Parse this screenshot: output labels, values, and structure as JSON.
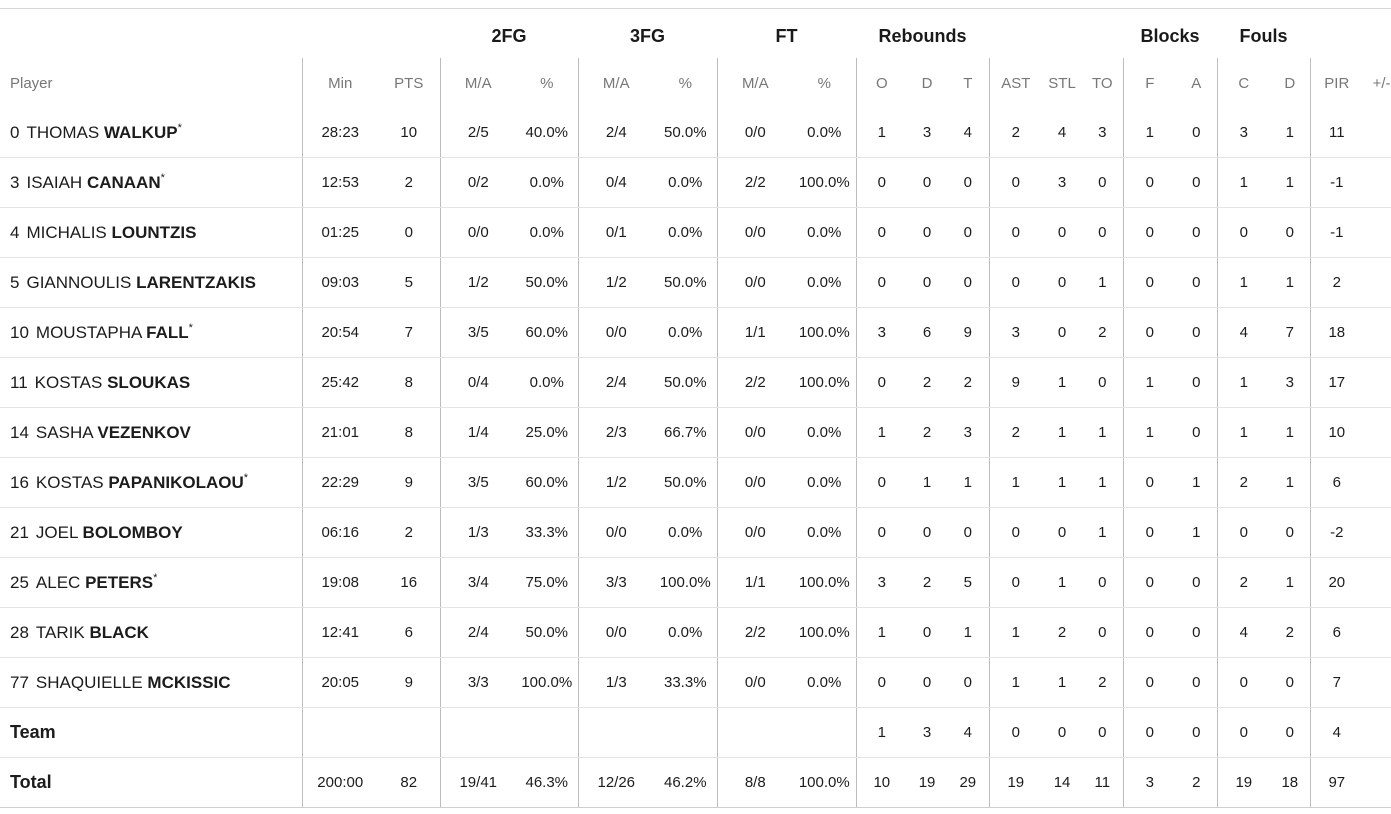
{
  "groups": {
    "fg2": "2FG",
    "fg3": "3FG",
    "ft": "FT",
    "rebounds": "Rebounds",
    "blocks": "Blocks",
    "fouls": "Fouls"
  },
  "columns": {
    "player": "Player",
    "min": "Min",
    "pts": "PTS",
    "fg2_ma": "M/A",
    "fg2_pct": "%",
    "fg3_ma": "M/A",
    "fg3_pct": "%",
    "ft_ma": "M/A",
    "ft_pct": "%",
    "reb_o": "O",
    "reb_d": "D",
    "reb_t": "T",
    "ast": "AST",
    "stl": "STL",
    "to": "TO",
    "blk_f": "F",
    "blk_a": "A",
    "foul_c": "C",
    "foul_d": "D",
    "pir": "PIR",
    "pm": "+/-"
  },
  "players": [
    {
      "num": "0",
      "first": "THOMAS",
      "last": "WALKUP",
      "star": "*",
      "min": "28:23",
      "pts": "10",
      "fg2": "2/5",
      "fg2p": "40.0%",
      "fg3": "2/4",
      "fg3p": "50.0%",
      "ft": "0/0",
      "ftp": "0.0%",
      "o": "1",
      "d": "3",
      "t": "4",
      "ast": "2",
      "stl": "4",
      "to": "3",
      "bf": "1",
      "ba": "0",
      "fc": "3",
      "fd": "1",
      "pir": "11",
      "pm": ""
    },
    {
      "num": "3",
      "first": "ISAIAH",
      "last": "CANAAN",
      "star": "*",
      "min": "12:53",
      "pts": "2",
      "fg2": "0/2",
      "fg2p": "0.0%",
      "fg3": "0/4",
      "fg3p": "0.0%",
      "ft": "2/2",
      "ftp": "100.0%",
      "o": "0",
      "d": "0",
      "t": "0",
      "ast": "0",
      "stl": "3",
      "to": "0",
      "bf": "0",
      "ba": "0",
      "fc": "1",
      "fd": "1",
      "pir": "-1",
      "pm": ""
    },
    {
      "num": "4",
      "first": "MICHALIS",
      "last": "LOUNTZIS",
      "star": "",
      "min": "01:25",
      "pts": "0",
      "fg2": "0/0",
      "fg2p": "0.0%",
      "fg3": "0/1",
      "fg3p": "0.0%",
      "ft": "0/0",
      "ftp": "0.0%",
      "o": "0",
      "d": "0",
      "t": "0",
      "ast": "0",
      "stl": "0",
      "to": "0",
      "bf": "0",
      "ba": "0",
      "fc": "0",
      "fd": "0",
      "pir": "-1",
      "pm": ""
    },
    {
      "num": "5",
      "first": "GIANNOULIS",
      "last": "LARENTZAKIS",
      "star": "",
      "min": "09:03",
      "pts": "5",
      "fg2": "1/2",
      "fg2p": "50.0%",
      "fg3": "1/2",
      "fg3p": "50.0%",
      "ft": "0/0",
      "ftp": "0.0%",
      "o": "0",
      "d": "0",
      "t": "0",
      "ast": "0",
      "stl": "0",
      "to": "1",
      "bf": "0",
      "ba": "0",
      "fc": "1",
      "fd": "1",
      "pir": "2",
      "pm": ""
    },
    {
      "num": "10",
      "first": "MOUSTAPHA",
      "last": "FALL",
      "star": "*",
      "min": "20:54",
      "pts": "7",
      "fg2": "3/5",
      "fg2p": "60.0%",
      "fg3": "0/0",
      "fg3p": "0.0%",
      "ft": "1/1",
      "ftp": "100.0%",
      "o": "3",
      "d": "6",
      "t": "9",
      "ast": "3",
      "stl": "0",
      "to": "2",
      "bf": "0",
      "ba": "0",
      "fc": "4",
      "fd": "7",
      "pir": "18",
      "pm": ""
    },
    {
      "num": "11",
      "first": "KOSTAS",
      "last": "SLOUKAS",
      "star": "",
      "min": "25:42",
      "pts": "8",
      "fg2": "0/4",
      "fg2p": "0.0%",
      "fg3": "2/4",
      "fg3p": "50.0%",
      "ft": "2/2",
      "ftp": "100.0%",
      "o": "0",
      "d": "2",
      "t": "2",
      "ast": "9",
      "stl": "1",
      "to": "0",
      "bf": "1",
      "ba": "0",
      "fc": "1",
      "fd": "3",
      "pir": "17",
      "pm": ""
    },
    {
      "num": "14",
      "first": "SASHA",
      "last": "VEZENKOV",
      "star": "",
      "min": "21:01",
      "pts": "8",
      "fg2": "1/4",
      "fg2p": "25.0%",
      "fg3": "2/3",
      "fg3p": "66.7%",
      "ft": "0/0",
      "ftp": "0.0%",
      "o": "1",
      "d": "2",
      "t": "3",
      "ast": "2",
      "stl": "1",
      "to": "1",
      "bf": "1",
      "ba": "0",
      "fc": "1",
      "fd": "1",
      "pir": "10",
      "pm": ""
    },
    {
      "num": "16",
      "first": "KOSTAS",
      "last": "PAPANIKOLAOU",
      "star": "*",
      "min": "22:29",
      "pts": "9",
      "fg2": "3/5",
      "fg2p": "60.0%",
      "fg3": "1/2",
      "fg3p": "50.0%",
      "ft": "0/0",
      "ftp": "0.0%",
      "o": "0",
      "d": "1",
      "t": "1",
      "ast": "1",
      "stl": "1",
      "to": "1",
      "bf": "0",
      "ba": "1",
      "fc": "2",
      "fd": "1",
      "pir": "6",
      "pm": ""
    },
    {
      "num": "21",
      "first": "JOEL",
      "last": "BOLOMBOY",
      "star": "",
      "min": "06:16",
      "pts": "2",
      "fg2": "1/3",
      "fg2p": "33.3%",
      "fg3": "0/0",
      "fg3p": "0.0%",
      "ft": "0/0",
      "ftp": "0.0%",
      "o": "0",
      "d": "0",
      "t": "0",
      "ast": "0",
      "stl": "0",
      "to": "1",
      "bf": "0",
      "ba": "1",
      "fc": "0",
      "fd": "0",
      "pir": "-2",
      "pm": ""
    },
    {
      "num": "25",
      "first": "ALEC",
      "last": "PETERS",
      "star": "*",
      "min": "19:08",
      "pts": "16",
      "fg2": "3/4",
      "fg2p": "75.0%",
      "fg3": "3/3",
      "fg3p": "100.0%",
      "ft": "1/1",
      "ftp": "100.0%",
      "o": "3",
      "d": "2",
      "t": "5",
      "ast": "0",
      "stl": "1",
      "to": "0",
      "bf": "0",
      "ba": "0",
      "fc": "2",
      "fd": "1",
      "pir": "20",
      "pm": ""
    },
    {
      "num": "28",
      "first": "TARIK",
      "last": "BLACK",
      "star": "",
      "min": "12:41",
      "pts": "6",
      "fg2": "2/4",
      "fg2p": "50.0%",
      "fg3": "0/0",
      "fg3p": "0.0%",
      "ft": "2/2",
      "ftp": "100.0%",
      "o": "1",
      "d": "0",
      "t": "1",
      "ast": "1",
      "stl": "2",
      "to": "0",
      "bf": "0",
      "ba": "0",
      "fc": "4",
      "fd": "2",
      "pir": "6",
      "pm": ""
    },
    {
      "num": "77",
      "first": "SHAQUIELLE",
      "last": "MCKISSIC",
      "star": "",
      "min": "20:05",
      "pts": "9",
      "fg2": "3/3",
      "fg2p": "100.0%",
      "fg3": "1/3",
      "fg3p": "33.3%",
      "ft": "0/0",
      "ftp": "0.0%",
      "o": "0",
      "d": "0",
      "t": "0",
      "ast": "1",
      "stl": "1",
      "to": "2",
      "bf": "0",
      "ba": "0",
      "fc": "0",
      "fd": "0",
      "pir": "7",
      "pm": ""
    }
  ],
  "team": {
    "label": "Team",
    "min": "",
    "pts": "",
    "fg2": "",
    "fg2p": "",
    "fg3": "",
    "fg3p": "",
    "ft": "",
    "ftp": "",
    "o": "1",
    "d": "3",
    "t": "4",
    "ast": "0",
    "stl": "0",
    "to": "0",
    "bf": "0",
    "ba": "0",
    "fc": "0",
    "fd": "0",
    "pir": "4",
    "pm": ""
  },
  "total": {
    "label": "Total",
    "min": "200:00",
    "pts": "82",
    "fg2": "19/41",
    "fg2p": "46.3%",
    "fg3": "12/26",
    "fg3p": "46.2%",
    "ft": "8/8",
    "ftp": "100.0%",
    "o": "10",
    "d": "19",
    "t": "29",
    "ast": "19",
    "stl": "14",
    "to": "11",
    "bf": "3",
    "ba": "2",
    "fc": "19",
    "fd": "18",
    "pir": "97",
    "pm": ""
  }
}
